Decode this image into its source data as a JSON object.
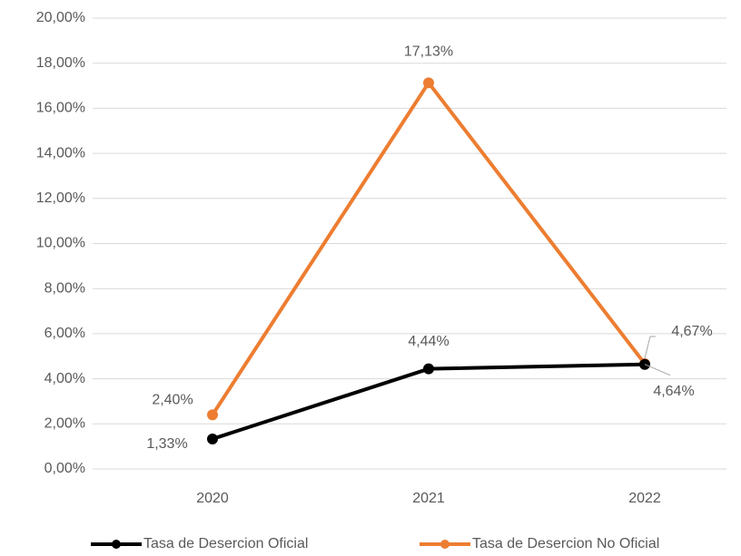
{
  "chart_data": {
    "type": "line",
    "categories": [
      "2020",
      "2021",
      "2022"
    ],
    "series": [
      {
        "name": "Tasa de Desercion Oficial",
        "color": "#000000",
        "values": [
          1.33,
          4.44,
          4.64
        ],
        "value_labels": [
          "1,33%",
          "4,44%",
          "4,64%"
        ]
      },
      {
        "name": "Tasa de Desercion No Oficial",
        "color": "#ed7d31",
        "values": [
          2.4,
          17.13,
          4.67
        ],
        "value_labels": [
          "2,40%",
          "17,13%",
          "4,67%"
        ]
      }
    ],
    "ylim": [
      0,
      20
    ],
    "yticks": [
      {
        "value": 0,
        "label": "0,00%"
      },
      {
        "value": 2,
        "label": "2,00%"
      },
      {
        "value": 4,
        "label": "4,00%"
      },
      {
        "value": 6,
        "label": "6,00%"
      },
      {
        "value": 8,
        "label": "8,00%"
      },
      {
        "value": 10,
        "label": "10,00%"
      },
      {
        "value": 12,
        "label": "12,00%"
      },
      {
        "value": 14,
        "label": "14,00%"
      },
      {
        "value": 16,
        "label": "16,00%"
      },
      {
        "value": 18,
        "label": "18,00%"
      },
      {
        "value": 20,
        "label": "20,00%"
      }
    ],
    "grid": true,
    "legend": "bottom"
  }
}
